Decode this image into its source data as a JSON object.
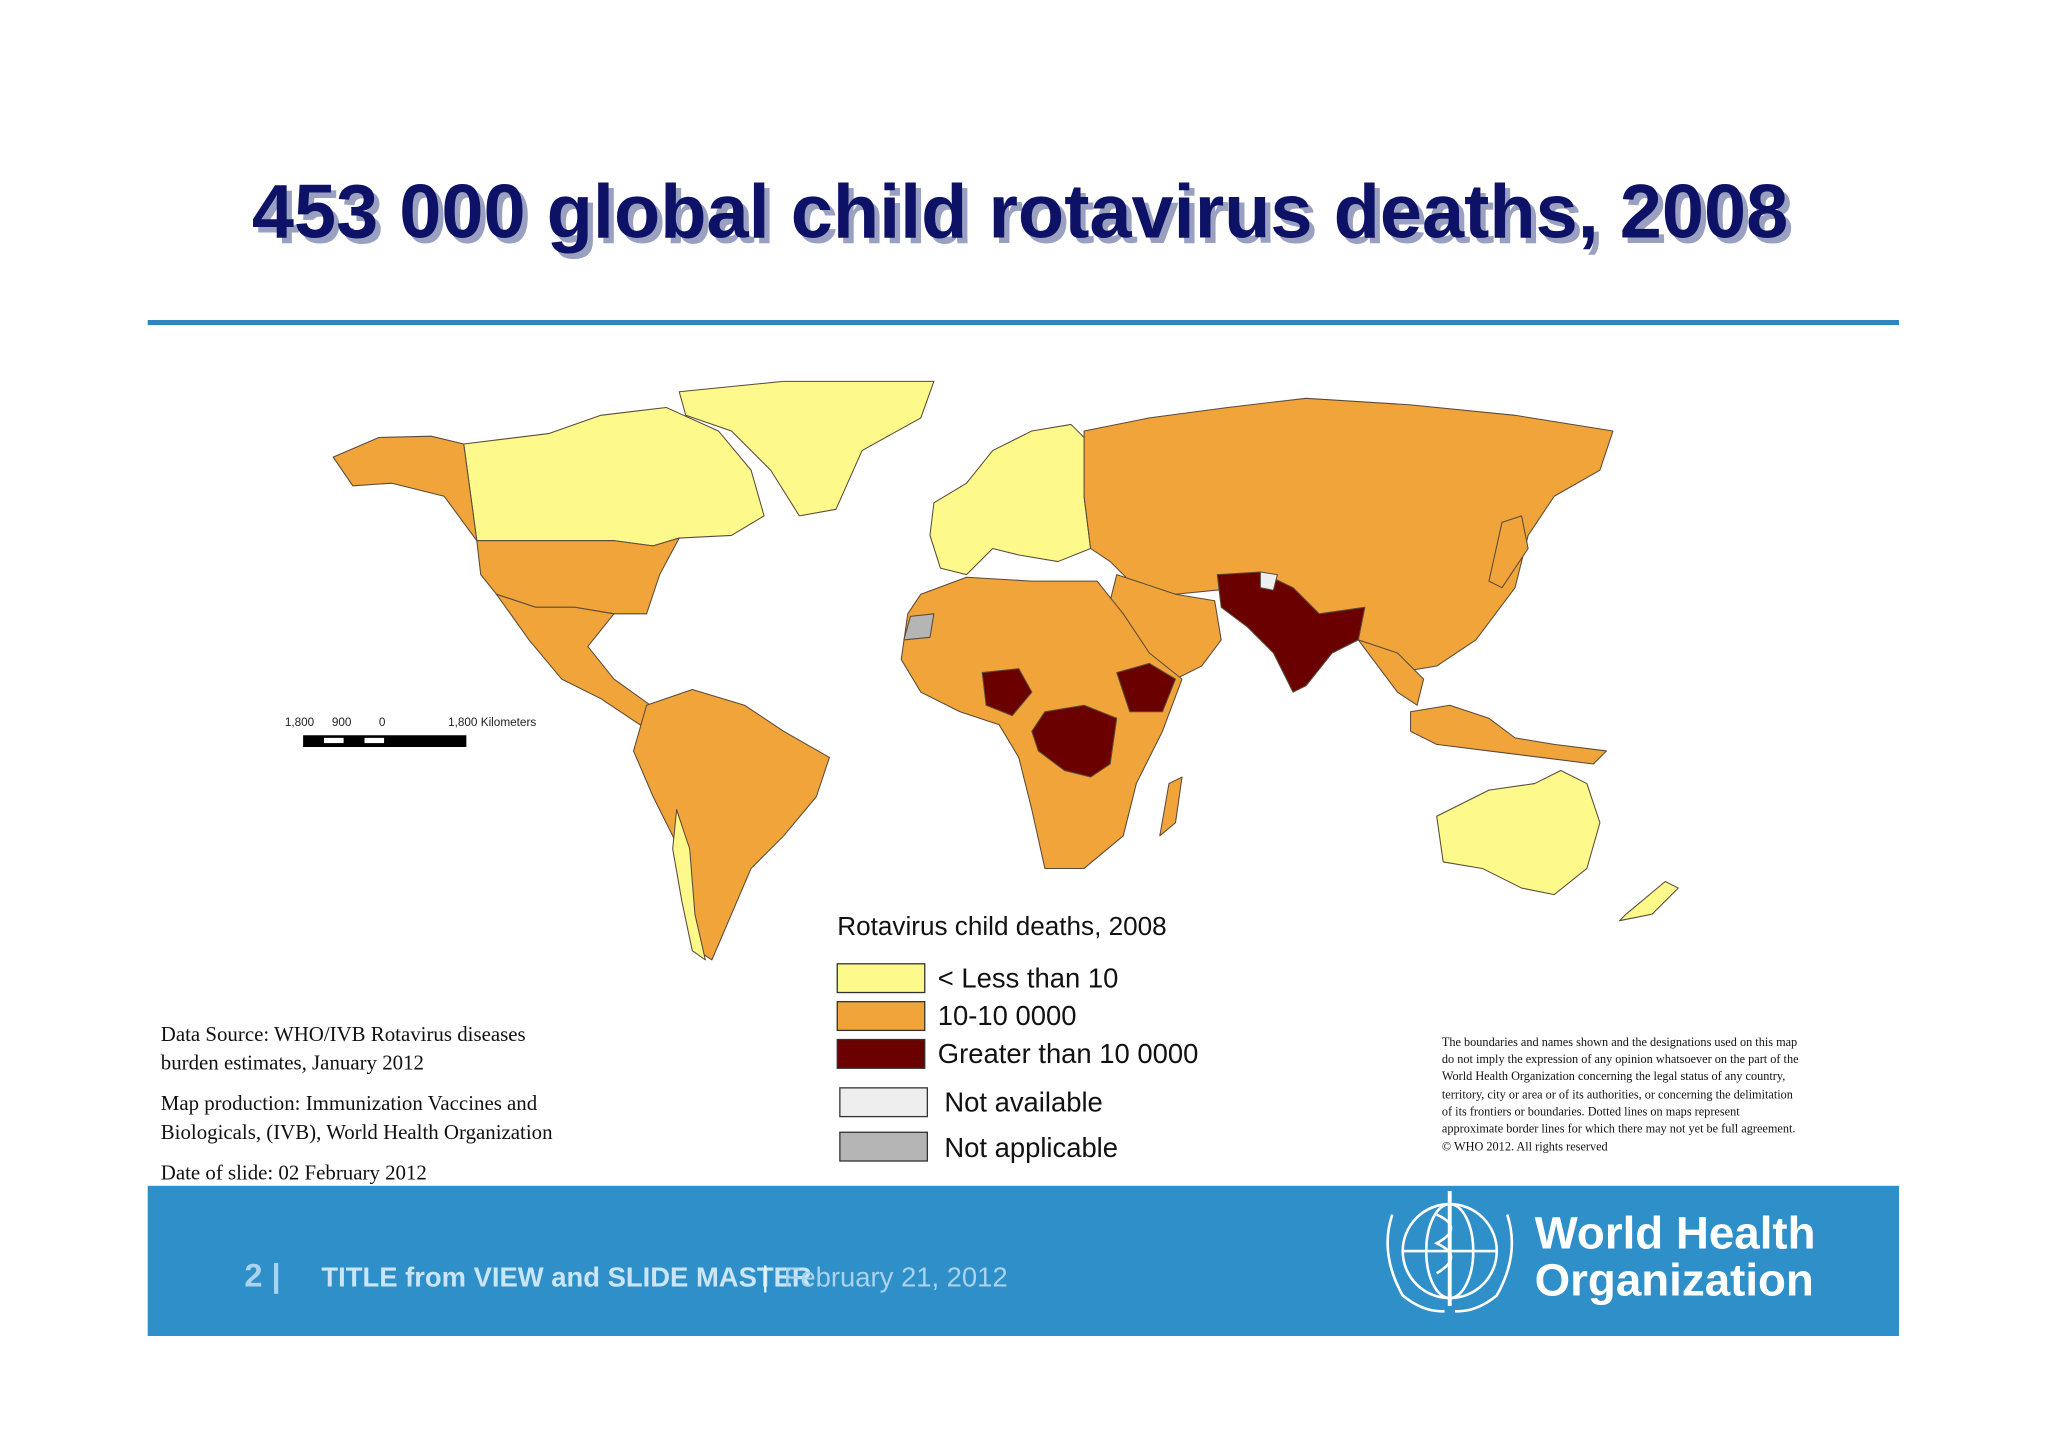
{
  "title": "453 000 global child rotavirus deaths, 2008",
  "scale_bar": {
    "labels": [
      "1,800",
      "900",
      "0",
      "1,800 Kilometers"
    ]
  },
  "legend": {
    "title": "Rotavirus child deaths, 2008",
    "items": [
      {
        "label": "< Less than 10",
        "color": "#fdf98a"
      },
      {
        "label": "10-10 0000",
        "color": "#f0a43a"
      },
      {
        "label": "Greater than 10 0000",
        "color": "#6b0000"
      },
      {
        "label": "Not available",
        "color": "#eeeeee"
      },
      {
        "label": "Not applicable",
        "color": "#b5b5b5"
      }
    ]
  },
  "source": {
    "lines": [
      "Data Source: WHO/IVB Rotavirus diseases",
      "burden estimates, January 2012",
      "Map production: Immunization Vaccines and",
      "Biologicals, (IVB), World Health Organization",
      "Date of slide: 02 February 2012"
    ]
  },
  "disclaimer": {
    "lines": [
      "The boundaries and names shown and the designations used on this map",
      "do not imply the expression of any opinion whatsoever on the part of the",
      "World Health Organization concerning the legal status of any country,",
      "territory, city or area or of its authorities, or concerning the delimitation",
      "of its frontiers or boundaries. Dotted lines on maps represent",
      "approximate border lines for which there may not yet be full agreement.",
      "© WHO 2012. All rights reserved"
    ]
  },
  "footer": {
    "page": "2 |",
    "text": "TITLE from VIEW and SLIDE MASTER",
    "separator": "|",
    "date": "February 21, 2012"
  },
  "logo": {
    "line1": "World Health",
    "line2": "Organization"
  }
}
